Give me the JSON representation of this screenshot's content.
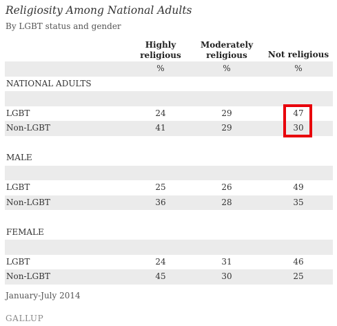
{
  "title": "Religiosity Among National Adults",
  "subtitle": "By LGBT status and gender",
  "chart_data": {
    "type": "table",
    "columns": [
      "Highly religious",
      "Moderately religious",
      "Not religious"
    ],
    "unit_row": [
      "%",
      "%",
      "%"
    ],
    "groups": [
      {
        "name": "NATIONAL ADULTS",
        "rows": [
          {
            "label": "LGBT",
            "values": [
              24,
              29,
              47
            ]
          },
          {
            "label": "Non-LGBT",
            "values": [
              41,
              29,
              30
            ]
          }
        ]
      },
      {
        "name": "MALE",
        "rows": [
          {
            "label": "LGBT",
            "values": [
              25,
              26,
              49
            ]
          },
          {
            "label": "Non-LGBT",
            "values": [
              36,
              28,
              35
            ]
          }
        ]
      },
      {
        "name": "FEMALE",
        "rows": [
          {
            "label": "LGBT",
            "values": [
              24,
              31,
              46
            ]
          },
          {
            "label": "Non-LGBT",
            "values": [
              45,
              30,
              25
            ]
          }
        ]
      }
    ],
    "highlight": {
      "group": 0,
      "column": 2,
      "color": "#e8000b"
    }
  },
  "header": {
    "col1_line1": "Highly",
    "col1_line2": "religious",
    "col2_line1": "Moderately",
    "col2_line2": "religious",
    "col3_line1": "Not religious"
  },
  "footnote": "January-July 2014",
  "logo": "GALLUP"
}
